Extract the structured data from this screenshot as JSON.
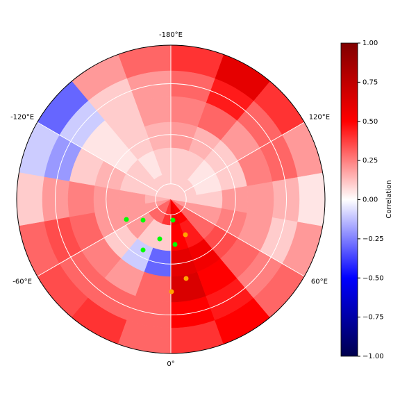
{
  "chart_data": {
    "type": "polar_heatmap",
    "colorbar_label": "Correlation",
    "clim": [
      -1,
      1
    ],
    "cticks": [
      {
        "value": -1,
        "label": "−1.00"
      },
      {
        "value": -0.75,
        "label": "−0.75"
      },
      {
        "value": -0.5,
        "label": "−0.50"
      },
      {
        "value": -0.25,
        "label": "−0.25"
      },
      {
        "value": 0,
        "label": "0.00"
      },
      {
        "value": 0.25,
        "label": "0.25"
      },
      {
        "value": 0.5,
        "label": "0.50"
      },
      {
        "value": 0.75,
        "label": "0.75"
      },
      {
        "value": 1,
        "label": "1.00"
      }
    ],
    "meridians": [
      {
        "value": -180,
        "label": "-180°E"
      },
      {
        "value": 120,
        "label": "120°E"
      },
      {
        "value": 60,
        "label": "60°E"
      },
      {
        "value": 0,
        "label": "0°"
      },
      {
        "value": -60,
        "label": "-60°E"
      },
      {
        "value": -120,
        "label": "-120°E"
      }
    ],
    "lon_start": -180,
    "lon_step": 20,
    "values": [
      [
        0.3,
        0.2,
        -0.3,
        -0.1,
        0.1,
        0.3,
        0.35,
        0.4,
        0.3,
        0.4,
        0.5,
        0.3,
        0.2,
        0.05,
        0.2,
        0.4,
        0.6,
        0.4
      ],
      [
        0.2,
        0.1,
        -0.1,
        -0.2,
        0.2,
        0.35,
        0.3,
        0.3,
        0.3,
        0.5,
        0.45,
        0.25,
        0.1,
        0.15,
        0.3,
        0.3,
        0.45,
        0.3
      ],
      [
        0.2,
        0.1,
        0.05,
        0.1,
        0.25,
        0.3,
        0.25,
        0.2,
        0.3,
        0.65,
        0.5,
        0.3,
        0.2,
        0.2,
        0.25,
        0.2,
        0.3,
        0.25
      ],
      [
        0.15,
        0.1,
        0.05,
        0.15,
        0.2,
        0.2,
        0.1,
        -0.1,
        -0.3,
        0.6,
        0.55,
        0.35,
        0.25,
        0.2,
        0.1,
        0.1,
        0.15,
        0.2
      ],
      [
        0.1,
        0.05,
        0.1,
        0.1,
        0.2,
        0.2,
        0.2,
        0.1,
        0.1,
        0.5,
        0.45,
        0.3,
        0.2,
        0.1,
        0.05,
        0.05,
        0.1,
        0.1
      ],
      [
        0.1,
        0.1,
        0.1,
        0.1,
        0.15,
        0.2,
        0.3,
        0.3,
        0.4,
        0.55,
        0.5,
        0.3,
        0.2,
        0.1,
        0.1,
        0.1,
        0.1,
        0.1
      ]
    ]
  }
}
